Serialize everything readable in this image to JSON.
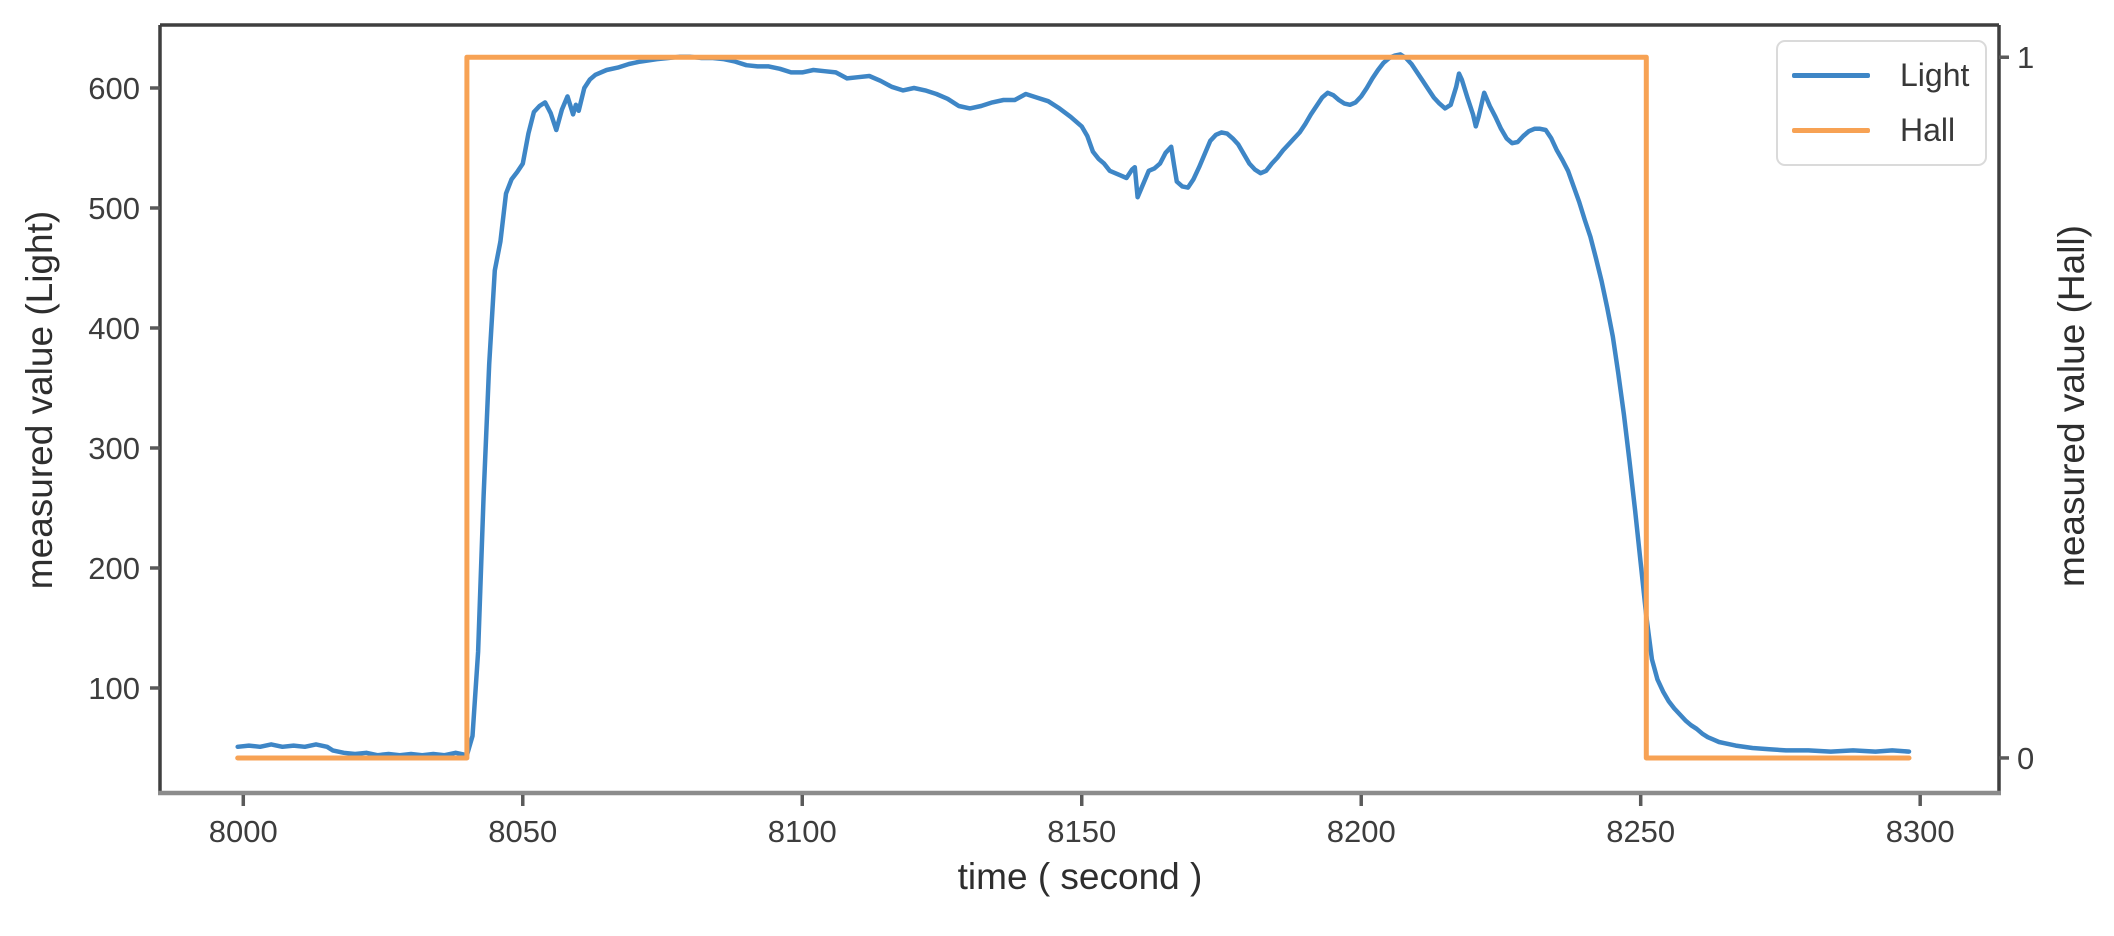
{
  "chart_data": {
    "type": "line",
    "title": "",
    "xlabel": "time ( second )",
    "ylabel_left": "measured value (Light)",
    "ylabel_right": "measured value (Hall)",
    "x_ticks": [
      8000,
      8050,
      8100,
      8150,
      8200,
      8250,
      8300
    ],
    "y_ticks_left": [
      100,
      200,
      300,
      400,
      500,
      600
    ],
    "y_ticks_right": [
      0,
      1
    ],
    "xlim": [
      7985.1,
      8314.1
    ],
    "ylim_left": [
      12.5,
      652.5
    ],
    "ylim_right": [
      -0.05,
      1.046
    ],
    "grid": false,
    "legend_position": "upper right",
    "colors": {
      "light_line": "#3e86c6",
      "hall_line": "#f7a254",
      "spine": "#3f3f3f",
      "bottom_spine": "#8c8c8c",
      "tick": "#5a5a5a",
      "tick_text": "#3d3d3d"
    },
    "legend": [
      {
        "label": "Light",
        "color": "#3e86c6"
      },
      {
        "label": "Hall",
        "color": "#f7a254"
      }
    ],
    "series": [
      {
        "name": "Light",
        "axis": "left",
        "color": "#3e86c6",
        "points": [
          [
            7999,
            51
          ],
          [
            8001,
            52
          ],
          [
            8003,
            51
          ],
          [
            8005,
            53
          ],
          [
            8007,
            51
          ],
          [
            8009,
            52
          ],
          [
            8011,
            51
          ],
          [
            8013,
            53
          ],
          [
            8015,
            51
          ],
          [
            8016,
            48
          ],
          [
            8018,
            46
          ],
          [
            8020,
            45
          ],
          [
            8022,
            46
          ],
          [
            8024,
            44
          ],
          [
            8026,
            45
          ],
          [
            8028,
            44
          ],
          [
            8030,
            45
          ],
          [
            8032,
            44
          ],
          [
            8034,
            45
          ],
          [
            8036,
            44
          ],
          [
            8038,
            46
          ],
          [
            8040,
            44
          ],
          [
            8041,
            60
          ],
          [
            8042,
            130
          ],
          [
            8043,
            260
          ],
          [
            8044,
            370
          ],
          [
            8045,
            448
          ],
          [
            8046,
            472
          ],
          [
            8047,
            512
          ],
          [
            8048,
            524
          ],
          [
            8049,
            530
          ],
          [
            8050,
            537
          ],
          [
            8051,
            562
          ],
          [
            8052,
            580
          ],
          [
            8053,
            585
          ],
          [
            8054,
            588
          ],
          [
            8055,
            579
          ],
          [
            8056,
            565
          ],
          [
            8057,
            582
          ],
          [
            8058,
            593
          ],
          [
            8059,
            578
          ],
          [
            8059.5,
            586
          ],
          [
            8060,
            581
          ],
          [
            8061,
            600
          ],
          [
            8062,
            607
          ],
          [
            8063,
            611
          ],
          [
            8065,
            615
          ],
          [
            8067,
            617
          ],
          [
            8069,
            620
          ],
          [
            8071,
            622
          ],
          [
            8074,
            624
          ],
          [
            8076,
            625
          ],
          [
            8078,
            626
          ],
          [
            8080,
            626
          ],
          [
            8082,
            625
          ],
          [
            8084,
            625
          ],
          [
            8086,
            624
          ],
          [
            8088,
            622
          ],
          [
            8090,
            619
          ],
          [
            8092,
            618
          ],
          [
            8094,
            618
          ],
          [
            8096,
            616
          ],
          [
            8098,
            613
          ],
          [
            8100,
            613
          ],
          [
            8102,
            615
          ],
          [
            8104,
            614
          ],
          [
            8106,
            613
          ],
          [
            8108,
            608
          ],
          [
            8110,
            609
          ],
          [
            8112,
            610
          ],
          [
            8114,
            606
          ],
          [
            8116,
            601
          ],
          [
            8118,
            598
          ],
          [
            8120,
            600
          ],
          [
            8122,
            598
          ],
          [
            8124,
            595
          ],
          [
            8126,
            591
          ],
          [
            8128,
            585
          ],
          [
            8130,
            583
          ],
          [
            8132,
            585
          ],
          [
            8134,
            588
          ],
          [
            8136,
            590
          ],
          [
            8138,
            590
          ],
          [
            8140,
            595
          ],
          [
            8142,
            592
          ],
          [
            8144,
            589
          ],
          [
            8146,
            583
          ],
          [
            8148,
            576
          ],
          [
            8150,
            568
          ],
          [
            8151,
            560
          ],
          [
            8152,
            547
          ],
          [
            8153,
            541
          ],
          [
            8154,
            537
          ],
          [
            8155,
            531
          ],
          [
            8156,
            529
          ],
          [
            8157,
            527
          ],
          [
            8158,
            525
          ],
          [
            8159,
            532
          ],
          [
            8159.5,
            534
          ],
          [
            8160,
            509
          ],
          [
            8161,
            520
          ],
          [
            8162,
            531
          ],
          [
            8163,
            533
          ],
          [
            8164,
            537
          ],
          [
            8165,
            546
          ],
          [
            8166,
            551
          ],
          [
            8166.5,
            536
          ],
          [
            8167,
            522
          ],
          [
            8168,
            518
          ],
          [
            8169,
            517
          ],
          [
            8170,
            524
          ],
          [
            8171,
            534
          ],
          [
            8172,
            545
          ],
          [
            8173,
            556
          ],
          [
            8174,
            561
          ],
          [
            8175,
            563
          ],
          [
            8176,
            562
          ],
          [
            8177,
            558
          ],
          [
            8178,
            553
          ],
          [
            8179,
            545
          ],
          [
            8180,
            537
          ],
          [
            8181,
            532
          ],
          [
            8182,
            529
          ],
          [
            8183,
            531
          ],
          [
            8184,
            537
          ],
          [
            8185,
            542
          ],
          [
            8186,
            548
          ],
          [
            8187,
            553
          ],
          [
            8188,
            558
          ],
          [
            8189,
            563
          ],
          [
            8190,
            570
          ],
          [
            8191,
            578
          ],
          [
            8192,
            585
          ],
          [
            8193,
            592
          ],
          [
            8194,
            596
          ],
          [
            8195,
            594
          ],
          [
            8196,
            590
          ],
          [
            8197,
            587
          ],
          [
            8198,
            586
          ],
          [
            8199,
            588
          ],
          [
            8200,
            593
          ],
          [
            8201,
            600
          ],
          [
            8202,
            608
          ],
          [
            8203,
            615
          ],
          [
            8204,
            621
          ],
          [
            8205,
            625
          ],
          [
            8206,
            627
          ],
          [
            8207,
            628
          ],
          [
            8208,
            625
          ],
          [
            8209,
            620
          ],
          [
            8210,
            613
          ],
          [
            8211,
            606
          ],
          [
            8212,
            599
          ],
          [
            8213,
            592
          ],
          [
            8214,
            587
          ],
          [
            8215,
            583
          ],
          [
            8216,
            586
          ],
          [
            8217,
            601
          ],
          [
            8217.5,
            612
          ],
          [
            8218,
            607
          ],
          [
            8219,
            592
          ],
          [
            8220,
            578
          ],
          [
            8220.5,
            568
          ],
          [
            8221,
            576
          ],
          [
            8222,
            596
          ],
          [
            8223,
            585
          ],
          [
            8224,
            576
          ],
          [
            8225,
            566
          ],
          [
            8226,
            558
          ],
          [
            8227,
            554
          ],
          [
            8228,
            555
          ],
          [
            8229,
            560
          ],
          [
            8230,
            564
          ],
          [
            8231,
            566
          ],
          [
            8232,
            566
          ],
          [
            8233,
            565
          ],
          [
            8234,
            558
          ],
          [
            8235,
            548
          ],
          [
            8236,
            540
          ],
          [
            8237,
            531
          ],
          [
            8238,
            518
          ],
          [
            8239,
            505
          ],
          [
            8240,
            490
          ],
          [
            8241,
            476
          ],
          [
            8242,
            458
          ],
          [
            8243,
            439
          ],
          [
            8244,
            417
          ],
          [
            8245,
            393
          ],
          [
            8246,
            362
          ],
          [
            8247,
            328
          ],
          [
            8248,
            289
          ],
          [
            8249,
            248
          ],
          [
            8250,
            204
          ],
          [
            8251,
            160
          ],
          [
            8252,
            124
          ],
          [
            8253,
            107
          ],
          [
            8254,
            97
          ],
          [
            8255,
            89
          ],
          [
            8256,
            83
          ],
          [
            8257,
            78
          ],
          [
            8258,
            73
          ],
          [
            8259,
            69
          ],
          [
            8260,
            66
          ],
          [
            8261,
            62
          ],
          [
            8262,
            59
          ],
          [
            8263,
            57
          ],
          [
            8264,
            55
          ],
          [
            8265,
            54
          ],
          [
            8267,
            52
          ],
          [
            8270,
            50
          ],
          [
            8273,
            49
          ],
          [
            8276,
            48
          ],
          [
            8280,
            48
          ],
          [
            8284,
            47
          ],
          [
            8288,
            48
          ],
          [
            8292,
            47
          ],
          [
            8295,
            48
          ],
          [
            8298,
            47
          ]
        ]
      },
      {
        "name": "Hall",
        "axis": "right",
        "color": "#f7a254",
        "points": [
          [
            7999,
            0
          ],
          [
            8040,
            0
          ],
          [
            8040,
            1
          ],
          [
            8251,
            1
          ],
          [
            8251,
            0
          ],
          [
            8298,
            0
          ]
        ]
      }
    ]
  }
}
